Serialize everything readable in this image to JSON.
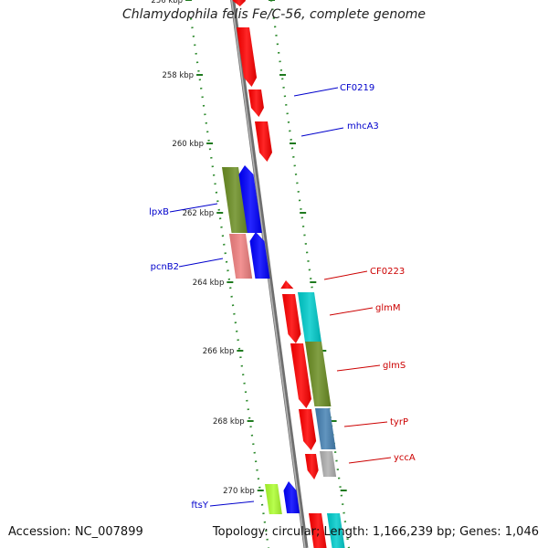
{
  "title": "Chlamydophila felis Fe/C-56, complete genome",
  "footer": {
    "accession": "Accession: NC_007899",
    "summary": "Topology: circular; Length: 1,166,239 bp; Genes: 1,046"
  },
  "ticks": [
    {
      "label": "256 kbp"
    },
    {
      "label": "258 kbp"
    },
    {
      "label": "260 kbp"
    },
    {
      "label": "262 kbp"
    },
    {
      "label": "264 kbp"
    },
    {
      "label": "266 kbp"
    },
    {
      "label": "268 kbp"
    },
    {
      "label": "270 kbp"
    }
  ],
  "genes": [
    {
      "name": "CF0219",
      "color": "#ff0000",
      "strand": "forward",
      "track": "inner-right"
    },
    {
      "name": "mhcA3",
      "color": "#ff0000",
      "strand": "forward",
      "track": "inner-right"
    },
    {
      "name": "lpxB",
      "color": "#6b8e23",
      "strand": "forward",
      "track": "outer-left"
    },
    {
      "name": "pcnB2",
      "color": "#f08080",
      "strand": "forward",
      "track": "outer-left"
    },
    {
      "name": "CF0223",
      "color": "#ff0000",
      "strand": "reverse",
      "track": "inner-right"
    },
    {
      "name": "glmM",
      "color": "#00cccc",
      "strand": "reverse",
      "track": "outer-right"
    },
    {
      "name": "glmS",
      "color": "#6b8e23",
      "strand": "reverse",
      "track": "outer-right"
    },
    {
      "name": "tyrP",
      "color": "#4682b4",
      "strand": "reverse",
      "track": "outer-right"
    },
    {
      "name": "yccA",
      "color": "#b0b0b0",
      "strand": "reverse",
      "track": "outer-right"
    },
    {
      "name": "ftsY",
      "color": "#adff2f",
      "strand": "forward",
      "track": "outer-left"
    }
  ],
  "colors": {
    "backbone": "#7f7f7f",
    "tick_dots": "#2e8b2e",
    "label_forward": "#0000cc",
    "label_reverse": "#cc0000",
    "blue_strand": "#0000ff",
    "red_strand": "#ff0000"
  }
}
